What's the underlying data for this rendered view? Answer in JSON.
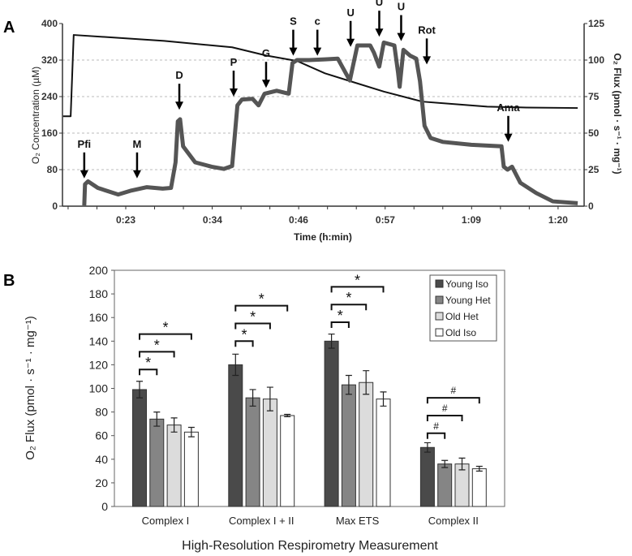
{
  "panels": {
    "a": "A",
    "b": "B"
  },
  "chart_data": [
    {
      "type": "line",
      "panel": "A",
      "xlabel": "Time (h:min)",
      "ylabel": "O₂ Concentration (µM)",
      "y2label": "O₂ Flux (pmol · s⁻¹ · mg⁻¹)",
      "x_unit": "minutes",
      "xticks": [
        {
          "t": 22.9,
          "label": "0:23"
        },
        {
          "t": 34.4,
          "label": "0:34"
        },
        {
          "t": 45.8,
          "label": "0:46"
        },
        {
          "t": 57.3,
          "label": "0:57"
        },
        {
          "t": 68.7,
          "label": "1:09"
        },
        {
          "t": 80.2,
          "label": "1:20"
        }
      ],
      "xlim": [
        14.6,
        84.0
      ],
      "ylim": [
        0,
        400
      ],
      "yticks": [
        0,
        80,
        160,
        240,
        320,
        400
      ],
      "y2lim": [
        0,
        125
      ],
      "y2ticks": [
        0,
        25,
        50,
        75,
        100,
        125
      ],
      "grid": "dashed horizontal",
      "series": [
        {
          "name": "O2 Concentration",
          "axis": "left",
          "color": "#111111",
          "points": [
            [
              14.6,
              197
            ],
            [
              15.6,
              197
            ],
            [
              16.0,
              375
            ],
            [
              28,
              362
            ],
            [
              37,
              348
            ],
            [
              41.5,
              330
            ],
            [
              45.6,
              318
            ],
            [
              49.3,
              291
            ],
            [
              52.6,
              274
            ],
            [
              57.1,
              251
            ],
            [
              62.2,
              229
            ],
            [
              70.8,
              218
            ],
            [
              76,
              216
            ],
            [
              82.8,
              215
            ]
          ]
        },
        {
          "name": "O2 Flux",
          "axis": "right",
          "color": "#555555",
          "points": [
            [
              17.4,
              0.5
            ],
            [
              17.5,
              15
            ],
            [
              17.9,
              17
            ],
            [
              19.2,
              12.5
            ],
            [
              21.9,
              8
            ],
            [
              23.5,
              10.5
            ],
            [
              25.7,
              13
            ],
            [
              27.8,
              12
            ],
            [
              28.9,
              12.5
            ],
            [
              29.5,
              30
            ],
            [
              29.8,
              58
            ],
            [
              30.1,
              59.5
            ],
            [
              30.5,
              41
            ],
            [
              32.1,
              30
            ],
            [
              34.3,
              27
            ],
            [
              35.9,
              25.5
            ],
            [
              37.0,
              27.5
            ],
            [
              37.7,
              69
            ],
            [
              38.3,
              73
            ],
            [
              39.7,
              73.5
            ],
            [
              40.5,
              69
            ],
            [
              41.3,
              77
            ],
            [
              42.9,
              79
            ],
            [
              44.5,
              77
            ],
            [
              45.0,
              98
            ],
            [
              45.6,
              100
            ],
            [
              47.2,
              100
            ],
            [
              49.3,
              100.5
            ],
            [
              51.0,
              101
            ],
            [
              52.6,
              86
            ],
            [
              53.6,
              110
            ],
            [
              55.3,
              110
            ],
            [
              55.8,
              105
            ],
            [
              56.5,
              95.5
            ],
            [
              57.1,
              112
            ],
            [
              58.5,
              110
            ],
            [
              59.0,
              91
            ],
            [
              59.2,
              81.7
            ],
            [
              59.7,
              107
            ],
            [
              60.6,
              103
            ],
            [
              61.4,
              101
            ],
            [
              61.9,
              85.5
            ],
            [
              62.5,
              55
            ],
            [
              63.3,
              46.7
            ],
            [
              64.9,
              44
            ],
            [
              68.7,
              42
            ],
            [
              72.7,
              41
            ],
            [
              73.0,
              27
            ],
            [
              73.5,
              25
            ],
            [
              74.1,
              27
            ],
            [
              75.2,
              16
            ],
            [
              77.3,
              9
            ],
            [
              79.5,
              3.3
            ],
            [
              82.8,
              2
            ]
          ]
        }
      ],
      "annotations": [
        {
          "label": "Pfi",
          "t": 17.4,
          "flux": 19
        },
        {
          "label": "M",
          "t": 24.4,
          "flux": 19
        },
        {
          "label": "D",
          "t": 30.0,
          "flux": 66
        },
        {
          "label": "P",
          "t": 37.2,
          "flux": 75
        },
        {
          "label": "G",
          "t": 41.5,
          "flux": 81
        },
        {
          "label": "S",
          "t": 45.1,
          "flux": 103
        },
        {
          "label": "c",
          "t": 48.3,
          "flux": 103
        },
        {
          "label": "U",
          "t": 52.7,
          "flux": 109
        },
        {
          "label": "U",
          "t": 56.5,
          "flux": 116
        },
        {
          "label": "U",
          "t": 59.4,
          "flux": 113
        },
        {
          "label": "Rot",
          "t": 62.8,
          "flux": 97
        },
        {
          "label": "Ama",
          "t": 73.6,
          "flux": 44
        }
      ]
    },
    {
      "type": "bar",
      "panel": "B",
      "xlabel": "High-Resolution Respirometry Measurement",
      "ylabel": "O₂ Flux (pmol · s⁻¹ · mg⁻¹)",
      "ylim": [
        0,
        200
      ],
      "yticks": [
        0,
        20,
        40,
        60,
        80,
        100,
        120,
        140,
        160,
        180,
        200
      ],
      "legend": "top-right",
      "categories": [
        "Complex I",
        "Complex I + II",
        "Max ETS",
        "Complex II"
      ],
      "series": [
        {
          "name": "Young Iso",
          "color": "#4a4a4a",
          "values": [
            99,
            120,
            140,
            50
          ],
          "errors": [
            7,
            9,
            6,
            4
          ]
        },
        {
          "name": "Young Het",
          "color": "#858585",
          "values": [
            74,
            92,
            103,
            36
          ],
          "errors": [
            6,
            7,
            8,
            3
          ]
        },
        {
          "name": "Old Het",
          "color": "#dcdcdc",
          "values": [
            69,
            91,
            105,
            36
          ],
          "errors": [
            6,
            10,
            10,
            5
          ]
        },
        {
          "name": "Old Iso",
          "color": "#ffffff",
          "values": [
            63,
            77,
            91,
            32
          ],
          "errors": [
            4,
            1,
            6,
            2
          ]
        }
      ],
      "significance": [
        {
          "category": 0,
          "symbol": "*",
          "comparisons": [
            {
              "to": 1,
              "level": 116
            },
            {
              "to": 2,
              "level": 131
            },
            {
              "to": 3,
              "level": 146
            }
          ]
        },
        {
          "category": 1,
          "symbol": "*",
          "comparisons": [
            {
              "to": 1,
              "level": 140
            },
            {
              "to": 2,
              "level": 155
            },
            {
              "to": 3,
              "level": 170
            }
          ]
        },
        {
          "category": 2,
          "symbol": "*",
          "comparisons": [
            {
              "to": 1,
              "level": 156
            },
            {
              "to": 2,
              "level": 171
            },
            {
              "to": 3,
              "level": 186
            }
          ]
        },
        {
          "category": 3,
          "symbol": "#",
          "comparisons": [
            {
              "to": 1,
              "level": 62
            },
            {
              "to": 2,
              "level": 77
            },
            {
              "to": 3,
              "level": 92
            }
          ]
        }
      ]
    }
  ]
}
